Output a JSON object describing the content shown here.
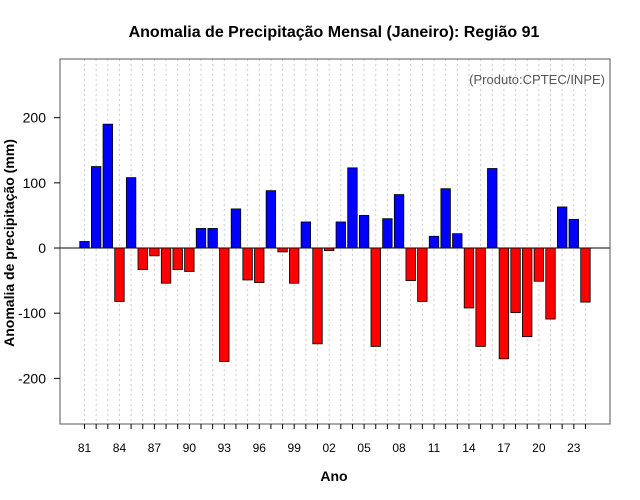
{
  "chart_data": {
    "type": "bar",
    "title": "Anomalia de Precipitação Mensal (Janeiro): Região 91",
    "xlabel": "Ano",
    "ylabel": "Anomalia de precipitação (mm)",
    "annotation": "(Produto:CPTEC/INPE)",
    "ylim": [
      -270,
      290
    ],
    "y_ticks": [
      -200,
      -100,
      0,
      100,
      200
    ],
    "categories": [
      "81",
      "82",
      "83",
      "84",
      "85",
      "86",
      "87",
      "88",
      "89",
      "90",
      "91",
      "92",
      "93",
      "94",
      "95",
      "96",
      "97",
      "98",
      "99",
      "00",
      "01",
      "02",
      "03",
      "04",
      "05",
      "06",
      "07",
      "08",
      "09",
      "10",
      "11",
      "12",
      "13",
      "14",
      "15",
      "16",
      "17",
      "18",
      "19",
      "20",
      "21",
      "22",
      "23",
      "24"
    ],
    "values": [
      10,
      125,
      190,
      -82,
      108,
      -33,
      -12,
      -54,
      -33,
      -36,
      30,
      30,
      -174,
      60,
      -49,
      -53,
      88,
      -6,
      -54,
      40,
      -147,
      -4,
      40,
      123,
      50,
      -151,
      45,
      82,
      -50,
      -82,
      18,
      91,
      22,
      -92,
      -151,
      122,
      -170,
      -99,
      -136,
      -51,
      -109,
      63,
      44,
      -83
    ],
    "x_tick_labels": [
      "81",
      "84",
      "87",
      "90",
      "93",
      "96",
      "99",
      "02",
      "05",
      "08",
      "11",
      "14",
      "17",
      "20",
      "23"
    ],
    "colors": {
      "positive": "#0000ff",
      "negative": "#ff0000",
      "grid": "#cccccc",
      "zero_line": "#000000"
    },
    "grid": true
  }
}
